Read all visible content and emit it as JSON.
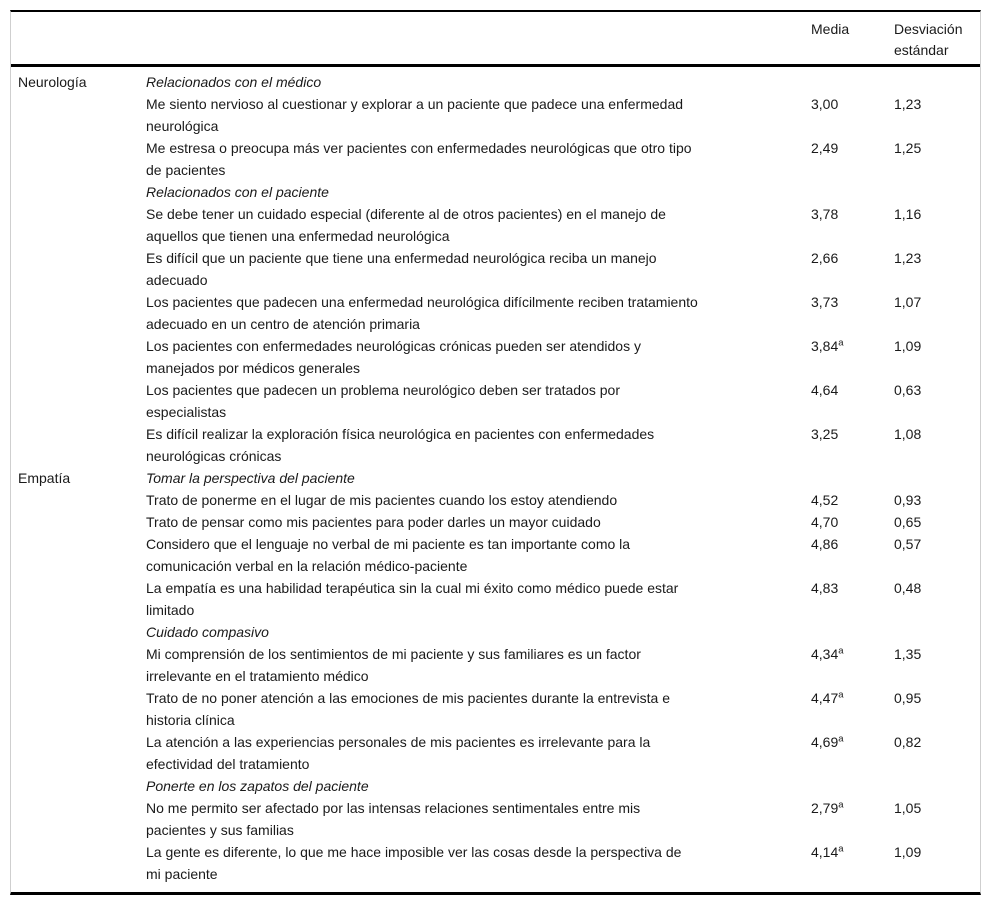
{
  "colors": {
    "rule": "#000000",
    "frame_border": "#cfcfcf",
    "text": "#1a1a1a",
    "background": "#ffffff"
  },
  "table": {
    "header": {
      "media": "Media",
      "sd": "Desviación estándar"
    },
    "sections": [
      {
        "category": "Neurología",
        "groups": [
          {
            "subtitle": "Relacionados con el médico",
            "items": [
              {
                "lines": [
                  "Me siento nervioso al cuestionar y explorar a un paciente que padece una enfermedad",
                  "neurológica"
                ],
                "media": "3,00",
                "media_sup": "",
                "sd": "1,23"
              },
              {
                "lines": [
                  "Me estresa o preocupa más ver pacientes con enfermedades neurológicas que otro tipo",
                  "de pacientes"
                ],
                "media": "2,49",
                "media_sup": "",
                "sd": "1,25"
              }
            ]
          },
          {
            "subtitle": "Relacionados con el paciente",
            "items": [
              {
                "lines": [
                  "Se debe tener un cuidado especial (diferente al de otros pacientes) en el manejo de",
                  "aquellos que tienen una enfermedad neurológica"
                ],
                "media": "3,78",
                "media_sup": "",
                "sd": "1,16"
              },
              {
                "lines": [
                  "Es difícil que un paciente que tiene una enfermedad neurológica reciba un manejo",
                  "adecuado"
                ],
                "media": "2,66",
                "media_sup": "",
                "sd": "1,23"
              },
              {
                "lines": [
                  "Los pacientes que padecen una enfermedad neurológica difícilmente reciben tratamiento",
                  "adecuado en un centro de atención primaria"
                ],
                "media": "3,73",
                "media_sup": "",
                "sd": "1,07"
              },
              {
                "lines": [
                  "Los pacientes con enfermedades neurológicas crónicas pueden ser atendidos y",
                  "manejados por médicos generales"
                ],
                "media": "3,84",
                "media_sup": "a",
                "sd": "1,09"
              },
              {
                "lines": [
                  "Los pacientes que padecen un problema neurológico deben ser tratados por",
                  "especialistas"
                ],
                "media": "4,64",
                "media_sup": "",
                "sd": "0,63"
              },
              {
                "lines": [
                  "Es difícil realizar la exploración física neurológica en pacientes con enfermedades",
                  "neurológicas crónicas"
                ],
                "media": "3,25",
                "media_sup": "",
                "sd": "1,08"
              }
            ]
          }
        ]
      },
      {
        "category": "Empatía",
        "groups": [
          {
            "subtitle": "Tomar la perspectiva del paciente",
            "items": [
              {
                "lines": [
                  "Trato de ponerme en el lugar de mis pacientes cuando los estoy atendiendo"
                ],
                "media": "4,52",
                "media_sup": "",
                "sd": "0,93"
              },
              {
                "lines": [
                  "Trato de pensar como mis pacientes para poder darles un mayor cuidado"
                ],
                "media": "4,70",
                "media_sup": "",
                "sd": "0,65"
              },
              {
                "lines": [
                  "Considero que el lenguaje no verbal de mi paciente es tan importante como la",
                  "comunicación verbal en la relación médico-paciente"
                ],
                "media": "4,86",
                "media_sup": "",
                "sd": "0,57"
              },
              {
                "lines": [
                  "La empatía es una habilidad terapéutica sin la cual mi éxito como médico puede estar",
                  "limitado"
                ],
                "media": "4,83",
                "media_sup": "",
                "sd": "0,48"
              }
            ]
          },
          {
            "subtitle": "Cuidado compasivo",
            "items": [
              {
                "lines": [
                  "Mi comprensión de los sentimientos de mi paciente y sus familiares es un factor",
                  "irrelevante en el tratamiento médico"
                ],
                "media": "4,34",
                "media_sup": "a",
                "sd": "1,35"
              },
              {
                "lines": [
                  "Trato de no poner atención a las emociones de mis pacientes durante la entrevista e",
                  "historia clínica"
                ],
                "media": "4,47",
                "media_sup": "a",
                "sd": "0,95"
              },
              {
                "lines": [
                  "La atención a las experiencias personales de mis pacientes es irrelevante para la",
                  "efectividad del tratamiento"
                ],
                "media": "4,69",
                "media_sup": "a",
                "sd": "0,82"
              }
            ]
          },
          {
            "subtitle": "Ponerte en los zapatos del paciente",
            "items": [
              {
                "lines": [
                  "No me permito ser afectado por las intensas relaciones sentimentales entre mis",
                  "pacientes y sus familias"
                ],
                "media": "2,79",
                "media_sup": "a",
                "sd": "1,05"
              },
              {
                "lines": [
                  "La gente es diferente, lo que me hace imposible ver las cosas desde la perspectiva de",
                  "mi paciente"
                ],
                "media": "4,14",
                "media_sup": "a",
                "sd": "1,09"
              }
            ]
          }
        ]
      }
    ]
  }
}
